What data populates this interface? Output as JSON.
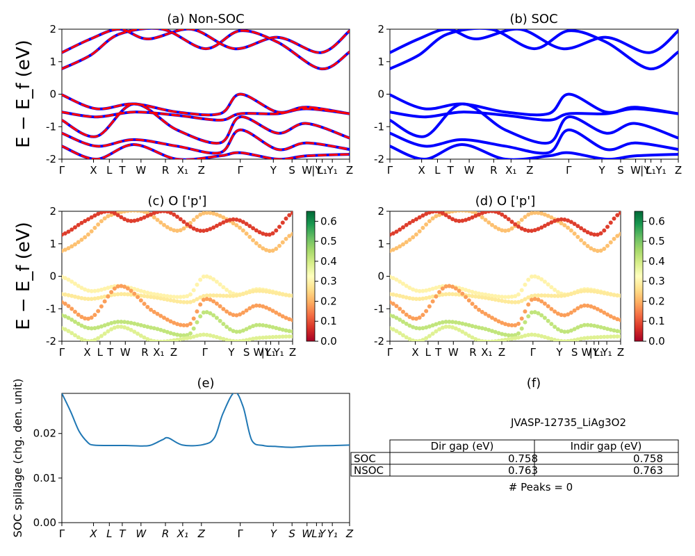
{
  "figure": {
    "ylabel_energy": "E − E_f (eV)"
  },
  "chart_data": [
    {
      "id": "a",
      "type": "line",
      "title": "(a) Non-SOC",
      "ylabel": "E − E_f (eV)",
      "ylim": [
        -2,
        2
      ],
      "yticks": [
        -2,
        -1,
        0,
        1,
        2
      ],
      "xticks": [
        "Γ",
        "X",
        "L",
        "T",
        "W",
        "R",
        "X₁",
        "Z",
        "Γ",
        "Y",
        "S",
        "W",
        "|Y",
        "L₁",
        "Y₁",
        "Z"
      ],
      "series": [
        {
          "color": "#0000ff",
          "style": "solid"
        },
        {
          "color": "#ff0000",
          "style": "dashed"
        }
      ],
      "bands": [
        {
          "x": [
            0,
            0.1,
            0.2,
            0.35,
            0.5,
            0.62,
            0.75,
            0.9,
            1.0
          ],
          "y": [
            0.78,
            1.2,
            1.85,
            2.0,
            1.4,
            1.95,
            1.6,
            0.78,
            1.3
          ]
        },
        {
          "x": [
            0,
            0.1,
            0.2,
            0.3,
            0.45,
            0.6,
            0.75,
            0.9,
            1.0
          ],
          "y": [
            1.28,
            1.7,
            2.0,
            1.7,
            2.0,
            1.4,
            1.75,
            1.28,
            1.95
          ]
        },
        {
          "x": [
            0,
            0.12,
            0.25,
            0.4,
            0.55,
            0.62,
            0.75,
            0.85,
            1.0
          ],
          "y": [
            -0.02,
            -0.45,
            -0.3,
            -0.55,
            -0.6,
            0.0,
            -0.55,
            -0.4,
            -0.6
          ]
        },
        {
          "x": [
            0,
            0.12,
            0.25,
            0.4,
            0.55,
            0.62,
            0.75,
            0.85,
            1.0
          ],
          "y": [
            -0.55,
            -0.7,
            -0.55,
            -0.65,
            -0.8,
            -0.6,
            -0.6,
            -0.45,
            -0.6
          ]
        },
        {
          "x": [
            0,
            0.12,
            0.25,
            0.4,
            0.55,
            0.62,
            0.75,
            0.85,
            1.0
          ],
          "y": [
            -0.8,
            -1.3,
            -0.3,
            -1.1,
            -1.5,
            -0.7,
            -1.2,
            -0.9,
            -1.35
          ]
        },
        {
          "x": [
            0,
            0.12,
            0.25,
            0.4,
            0.55,
            0.62,
            0.75,
            0.85,
            1.0
          ],
          "y": [
            -1.2,
            -1.6,
            -1.4,
            -1.6,
            -1.8,
            -1.1,
            -1.7,
            -1.5,
            -1.7
          ]
        },
        {
          "x": [
            0,
            0.12,
            0.25,
            0.4,
            0.55,
            0.62,
            0.75,
            0.85,
            1.0
          ],
          "y": [
            -1.6,
            -2.0,
            -1.55,
            -2.0,
            -1.9,
            -1.8,
            -2.0,
            -1.9,
            -1.85
          ]
        }
      ]
    },
    {
      "id": "b",
      "type": "line",
      "title": "(b) SOC",
      "ylim": [
        -2,
        2
      ],
      "yticks": [
        -2,
        -1,
        0,
        1,
        2
      ],
      "xticks": [
        "Γ",
        "X",
        "L",
        "T",
        "W",
        "R",
        "X₁",
        "Z",
        "Γ",
        "Y",
        "S",
        "W",
        "|Y",
        "L₁",
        "Y₁",
        "Z"
      ],
      "series": [
        {
          "color": "#0000ff",
          "style": "solid"
        }
      ],
      "bands": [
        {
          "x": [
            0,
            0.1,
            0.2,
            0.35,
            0.5,
            0.62,
            0.75,
            0.9,
            1.0
          ],
          "y": [
            0.78,
            1.2,
            1.85,
            2.0,
            1.4,
            1.95,
            1.6,
            0.78,
            1.3
          ]
        },
        {
          "x": [
            0,
            0.1,
            0.2,
            0.3,
            0.45,
            0.6,
            0.75,
            0.9,
            1.0
          ],
          "y": [
            1.28,
            1.7,
            2.0,
            1.7,
            2.0,
            1.4,
            1.75,
            1.28,
            1.95
          ]
        },
        {
          "x": [
            0,
            0.12,
            0.25,
            0.4,
            0.55,
            0.62,
            0.75,
            0.85,
            1.0
          ],
          "y": [
            -0.02,
            -0.45,
            -0.3,
            -0.55,
            -0.6,
            0.0,
            -0.55,
            -0.4,
            -0.6
          ]
        },
        {
          "x": [
            0,
            0.12,
            0.25,
            0.4,
            0.55,
            0.62,
            0.75,
            0.85,
            1.0
          ],
          "y": [
            -0.55,
            -0.7,
            -0.55,
            -0.65,
            -0.8,
            -0.6,
            -0.6,
            -0.45,
            -0.6
          ]
        },
        {
          "x": [
            0,
            0.12,
            0.25,
            0.4,
            0.55,
            0.62,
            0.75,
            0.85,
            1.0
          ],
          "y": [
            -0.8,
            -1.3,
            -0.3,
            -1.1,
            -1.5,
            -0.7,
            -1.2,
            -0.9,
            -1.35
          ]
        },
        {
          "x": [
            0,
            0.12,
            0.25,
            0.4,
            0.55,
            0.62,
            0.75,
            0.85,
            1.0
          ],
          "y": [
            -1.2,
            -1.6,
            -1.4,
            -1.6,
            -1.8,
            -1.1,
            -1.7,
            -1.5,
            -1.7
          ]
        },
        {
          "x": [
            0,
            0.12,
            0.25,
            0.4,
            0.55,
            0.62,
            0.75,
            0.85,
            1.0
          ],
          "y": [
            -1.6,
            -2.0,
            -1.55,
            -2.0,
            -1.9,
            -1.8,
            -2.0,
            -1.9,
            -1.85
          ]
        }
      ]
    },
    {
      "id": "c",
      "type": "scatter",
      "title": "(c)  O ['p']",
      "ylabel": "E − E_f (eV)",
      "ylim": [
        -2,
        2
      ],
      "yticks": [
        -2,
        -1,
        0,
        1,
        2
      ],
      "xticks": [
        "Γ",
        "X",
        "L",
        "T",
        "W",
        "R",
        "X₁",
        "Z",
        "Γ",
        "Y",
        "S",
        "W",
        "|Y",
        "L₁",
        "Y₁",
        "Z"
      ],
      "colorbar": {
        "min": 0.0,
        "max": 0.65,
        "ticks": [
          "0.0",
          "0.1",
          "0.2",
          "0.3",
          "0.4",
          "0.5",
          "0.6"
        ],
        "cmap": "RdYlGn"
      },
      "bands": [
        {
          "x": [
            0,
            0.1,
            0.2,
            0.35,
            0.5,
            0.62,
            0.75,
            0.9,
            1.0
          ],
          "y": [
            0.78,
            1.2,
            1.85,
            2.0,
            1.4,
            1.95,
            1.6,
            0.78,
            1.3
          ],
          "w": 0.22
        },
        {
          "x": [
            0,
            0.1,
            0.2,
            0.3,
            0.45,
            0.6,
            0.75,
            0.9,
            1.0
          ],
          "y": [
            1.28,
            1.7,
            2.0,
            1.7,
            2.0,
            1.4,
            1.75,
            1.28,
            1.95
          ],
          "w": 0.08
        },
        {
          "x": [
            0,
            0.12,
            0.25,
            0.4,
            0.55,
            0.62,
            0.75,
            0.85,
            1.0
          ],
          "y": [
            -0.02,
            -0.45,
            -0.3,
            -0.55,
            -0.6,
            0.0,
            -0.55,
            -0.4,
            -0.6
          ],
          "w": 0.3
        },
        {
          "x": [
            0,
            0.12,
            0.25,
            0.4,
            0.55,
            0.62,
            0.75,
            0.85,
            1.0
          ],
          "y": [
            -0.55,
            -0.7,
            -0.55,
            -0.65,
            -0.8,
            -0.6,
            -0.6,
            -0.45,
            -0.6
          ],
          "w": 0.28
        },
        {
          "x": [
            0,
            0.12,
            0.25,
            0.4,
            0.55,
            0.62,
            0.75,
            0.85,
            1.0
          ],
          "y": [
            -0.8,
            -1.3,
            -0.3,
            -1.1,
            -1.5,
            -0.7,
            -1.2,
            -0.9,
            -1.35
          ],
          "w": 0.18
        },
        {
          "x": [
            0,
            0.12,
            0.25,
            0.4,
            0.55,
            0.62,
            0.75,
            0.85,
            1.0
          ],
          "y": [
            -1.2,
            -1.6,
            -1.4,
            -1.6,
            -1.8,
            -1.1,
            -1.7,
            -1.5,
            -1.7
          ],
          "w": 0.42
        },
        {
          "x": [
            0,
            0.12,
            0.25,
            0.4,
            0.55,
            0.62,
            0.75,
            0.85,
            1.0
          ],
          "y": [
            -1.6,
            -2.0,
            -1.55,
            -2.0,
            -1.9,
            -1.8,
            -2.0,
            -1.9,
            -1.85
          ],
          "w": 0.38
        }
      ]
    },
    {
      "id": "d",
      "type": "scatter",
      "title": "(d) O ['p']",
      "ylim": [
        -2,
        2
      ],
      "yticks": [
        -2,
        -1,
        0,
        1,
        2
      ],
      "xticks": [
        "Γ",
        "X",
        "L",
        "T",
        "W",
        "R",
        "X₁",
        "Z",
        "Γ",
        "Y",
        "S",
        "W",
        "|Y",
        "L₁",
        "Y₁",
        "Z"
      ],
      "colorbar": {
        "min": 0.0,
        "max": 0.65,
        "ticks": [
          "0.0",
          "0.1",
          "0.2",
          "0.3",
          "0.4",
          "0.5",
          "0.6"
        ],
        "cmap": "RdYlGn"
      },
      "bands": [
        {
          "x": [
            0,
            0.1,
            0.2,
            0.35,
            0.5,
            0.62,
            0.75,
            0.9,
            1.0
          ],
          "y": [
            0.78,
            1.2,
            1.85,
            2.0,
            1.4,
            1.95,
            1.6,
            0.78,
            1.3
          ],
          "w": 0.22
        },
        {
          "x": [
            0,
            0.1,
            0.2,
            0.3,
            0.45,
            0.6,
            0.75,
            0.9,
            1.0
          ],
          "y": [
            1.28,
            1.7,
            2.0,
            1.7,
            2.0,
            1.4,
            1.75,
            1.28,
            1.95
          ],
          "w": 0.08
        },
        {
          "x": [
            0,
            0.12,
            0.25,
            0.4,
            0.55,
            0.62,
            0.75,
            0.85,
            1.0
          ],
          "y": [
            -0.02,
            -0.45,
            -0.3,
            -0.55,
            -0.6,
            0.0,
            -0.55,
            -0.4,
            -0.6
          ],
          "w": 0.3
        },
        {
          "x": [
            0,
            0.12,
            0.25,
            0.4,
            0.55,
            0.62,
            0.75,
            0.85,
            1.0
          ],
          "y": [
            -0.55,
            -0.7,
            -0.55,
            -0.65,
            -0.8,
            -0.6,
            -0.6,
            -0.45,
            -0.6
          ],
          "w": 0.28
        },
        {
          "x": [
            0,
            0.12,
            0.25,
            0.4,
            0.55,
            0.62,
            0.75,
            0.85,
            1.0
          ],
          "y": [
            -0.8,
            -1.3,
            -0.3,
            -1.1,
            -1.5,
            -0.7,
            -1.2,
            -0.9,
            -1.35
          ],
          "w": 0.18
        },
        {
          "x": [
            0,
            0.12,
            0.25,
            0.4,
            0.55,
            0.62,
            0.75,
            0.85,
            1.0
          ],
          "y": [
            -1.2,
            -1.6,
            -1.4,
            -1.6,
            -1.8,
            -1.1,
            -1.7,
            -1.5,
            -1.7
          ],
          "w": 0.42
        },
        {
          "x": [
            0,
            0.12,
            0.25,
            0.4,
            0.55,
            0.62,
            0.75,
            0.85,
            1.0
          ],
          "y": [
            -1.6,
            -2.0,
            -1.55,
            -2.0,
            -1.9,
            -1.8,
            -2.0,
            -1.9,
            -1.85
          ],
          "w": 0.38
        }
      ]
    },
    {
      "id": "e",
      "type": "line",
      "title": "(e)",
      "ylabel": "SOC spillage (chg. den. unit)",
      "ylim": [
        0.0,
        0.029
      ],
      "yticks": [
        "0.00",
        "0.01",
        "0.02"
      ],
      "xticks": [
        "Γ",
        "X",
        "L",
        "T",
        "W",
        "R",
        "X₁",
        "Z",
        "Γ",
        "Y",
        "S",
        "W",
        "L₁",
        "Y",
        "Y₁",
        "Z"
      ],
      "series": [
        {
          "color": "#1f77b4"
        }
      ],
      "x": [
        0.0,
        0.03,
        0.06,
        0.09,
        0.11,
        0.16,
        0.22,
        0.28,
        0.31,
        0.35,
        0.37,
        0.42,
        0.49,
        0.53,
        0.56,
        0.6,
        0.63,
        0.66,
        0.7,
        0.74,
        0.8,
        0.87,
        0.95,
        1.0
      ],
      "y": [
        0.029,
        0.025,
        0.0205,
        0.018,
        0.0174,
        0.0173,
        0.0173,
        0.0172,
        0.0174,
        0.0186,
        0.019,
        0.0174,
        0.0175,
        0.019,
        0.0245,
        0.0292,
        0.026,
        0.0185,
        0.0173,
        0.0171,
        0.0169,
        0.0172,
        0.0173,
        0.0174
      ]
    },
    {
      "id": "f",
      "type": "table",
      "title": "(f)",
      "subtitle": "JVASP-12735_LiAg3O2",
      "columns": [
        "Dir gap (eV)",
        "Indir gap (eV)"
      ],
      "rows": [
        {
          "label": "SOC",
          "values": [
            "0.758",
            "0.758"
          ]
        },
        {
          "label": "NSOC",
          "values": [
            "0.763",
            "0.763"
          ]
        }
      ],
      "footer": "# Peaks = 0"
    }
  ]
}
